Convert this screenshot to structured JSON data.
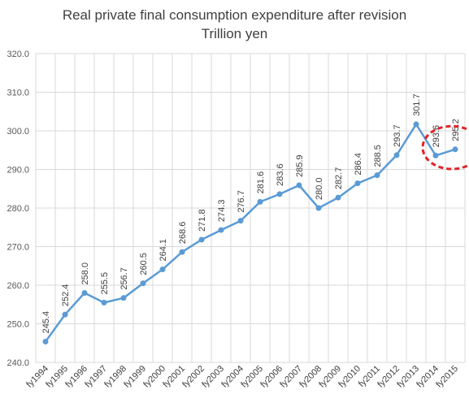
{
  "chart_data": {
    "type": "line",
    "title": "Real private final consumption expenditure after revision",
    "subtitle": "Trillion yen",
    "xlabel": "",
    "ylabel": "",
    "ylim": [
      240,
      320
    ],
    "yticks": [
      "240.0",
      "250.0",
      "260.0",
      "270.0",
      "280.0",
      "290.0",
      "300.0",
      "310.0",
      "320.0"
    ],
    "grid": true,
    "legend": "none",
    "categories": [
      "fy1994",
      "fy1995",
      "fy1996",
      "fy1997",
      "fy1998",
      "fy1999",
      "fy2000",
      "fy2001",
      "fy2002",
      "fy2003",
      "fy2004",
      "fy2005",
      "fy2006",
      "fy2007",
      "fy2008",
      "fy2009",
      "fy2010",
      "fy2011",
      "fy2012",
      "fy2013",
      "fy2014",
      "fy2015"
    ],
    "series": [
      {
        "values": [
          245.4,
          252.4,
          258.0,
          255.5,
          256.7,
          260.5,
          264.1,
          268.6,
          271.8,
          274.3,
          276.7,
          281.6,
          283.6,
          285.9,
          280.0,
          282.7,
          286.4,
          288.5,
          293.7,
          301.7,
          293.6,
          295.2
        ]
      }
    ],
    "line_color": "#5b9bd5",
    "annotation": {
      "shape": "dashed-ellipse",
      "color": "#e32228",
      "highlights": [
        "fy2014",
        "fy2015"
      ]
    }
  }
}
